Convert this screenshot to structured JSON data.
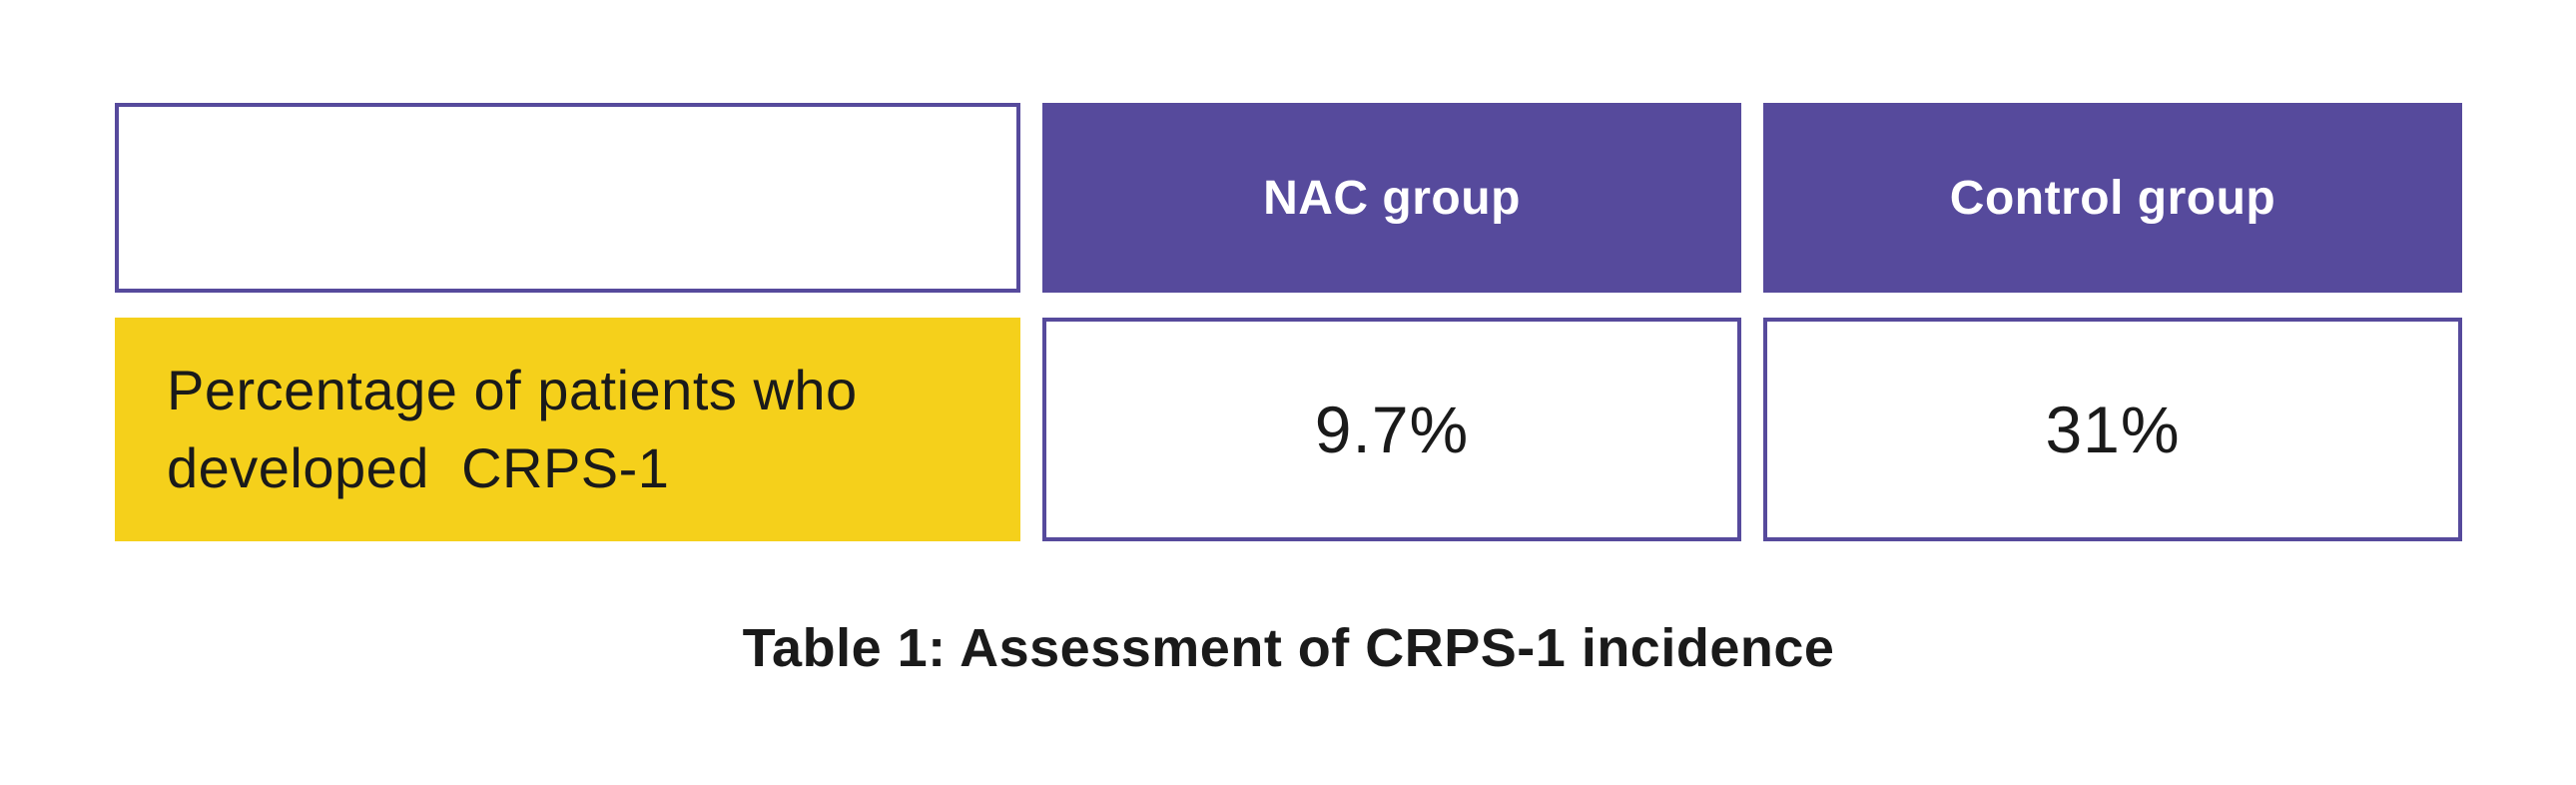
{
  "table": {
    "column_headers": [
      "",
      "NAC group",
      "Control group"
    ],
    "row": {
      "label": "Percentage of patients who developed CRPS-1",
      "label_lines": [
        "Percentage of patients who",
        "developed  CRPS-1"
      ],
      "values": [
        "9.7%",
        "31%"
      ]
    },
    "caption": "Table 1: Assessment of CRPS-1 incidence"
  },
  "chart_data": {
    "type": "table",
    "title": "Table 1: Assessment of CRPS-1 incidence",
    "columns": [
      "",
      "NAC group",
      "Control group"
    ],
    "rows": [
      [
        "Percentage of patients who developed CRPS-1",
        "9.7%",
        "31%"
      ]
    ],
    "series": [
      {
        "name": "NAC group",
        "values": [
          9.7
        ]
      },
      {
        "name": "Control group",
        "values": [
          31
        ]
      }
    ],
    "units": "%"
  },
  "colors": {
    "page_bg": "#ffffff",
    "header_bg": "#564a9c",
    "header_text": "#ffffff",
    "cell_border": "#564a9c",
    "label_bg": "#f5d01b",
    "body_text": "#1a1a1a"
  }
}
